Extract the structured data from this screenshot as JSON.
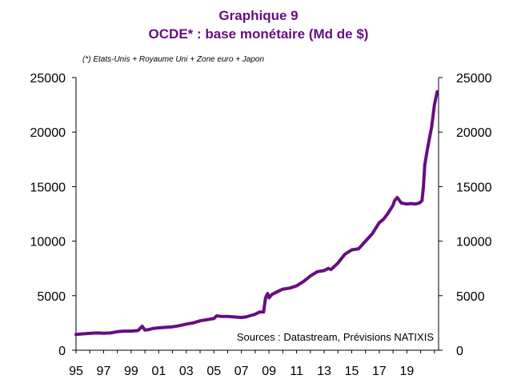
{
  "colors": {
    "series": "#660e7f",
    "title": "#660e7f",
    "axis": "#000000"
  },
  "chart_data": {
    "type": "line",
    "title": "Graphique 9",
    "subtitle": "OCDE* : base monétaire (Md de $)",
    "note": "(*) Etats-Unis + Royaume Uni + Zone euro + Japon",
    "source": "Sources : Datastream, Prévisions NATIXIS",
    "xlabel": "",
    "ylabel": "",
    "xlim": [
      1995,
      2021.3
    ],
    "ylim": [
      0,
      25000
    ],
    "grid": false,
    "x_ticks": [
      1995,
      1997,
      1999,
      2001,
      2003,
      2005,
      2007,
      2009,
      2011,
      2013,
      2015,
      2017,
      2019
    ],
    "x_tick_labels": [
      "95",
      "97",
      "99",
      "01",
      "03",
      "05",
      "07",
      "09",
      "11",
      "13",
      "15",
      "17",
      "19"
    ],
    "y_ticks": [
      0,
      5000,
      10000,
      15000,
      20000,
      25000
    ],
    "y_tick_labels": [
      "0",
      "5000",
      "10000",
      "15000",
      "20000",
      "25000"
    ],
    "series": [
      {
        "name": "OCDE base monétaire",
        "x": [
          1995.0,
          1995.5,
          1996.0,
          1996.5,
          1997.0,
          1997.5,
          1998.0,
          1998.5,
          1999.0,
          1999.5,
          1999.8,
          2000.0,
          2000.3,
          2000.6,
          2001.0,
          2001.5,
          2002.0,
          2002.5,
          2003.0,
          2003.5,
          2004.0,
          2004.5,
          2005.0,
          2005.2,
          2005.5,
          2006.0,
          2006.5,
          2007.0,
          2007.3,
          2007.6,
          2008.0,
          2008.3,
          2008.6,
          2008.75,
          2008.9,
          2009.0,
          2009.2,
          2009.5,
          2010.0,
          2010.5,
          2011.0,
          2011.5,
          2012.0,
          2012.5,
          2013.0,
          2013.3,
          2013.5,
          2014.0,
          2014.5,
          2015.0,
          2015.5,
          2016.0,
          2016.5,
          2017.0,
          2017.3,
          2017.6,
          2018.0,
          2018.1,
          2018.3,
          2018.6,
          2019.0,
          2019.3,
          2019.6,
          2019.9,
          2020.1,
          2020.2,
          2020.3,
          2020.5,
          2020.8,
          2021.0,
          2021.2
        ],
        "values": [
          1450,
          1500,
          1550,
          1580,
          1560,
          1580,
          1700,
          1750,
          1750,
          1800,
          2200,
          1850,
          1900,
          2000,
          2050,
          2100,
          2150,
          2250,
          2400,
          2500,
          2700,
          2800,
          2900,
          3150,
          3100,
          3100,
          3050,
          3000,
          3050,
          3150,
          3300,
          3500,
          3500,
          4800,
          5200,
          4800,
          5100,
          5300,
          5600,
          5700,
          5900,
          6300,
          6800,
          7200,
          7300,
          7500,
          7400,
          8000,
          8800,
          9200,
          9300,
          10000,
          10700,
          11700,
          12000,
          12500,
          13300,
          13700,
          14000,
          13500,
          13400,
          13450,
          13400,
          13500,
          13700,
          15000,
          17000,
          18500,
          20500,
          22500,
          23700
        ]
      }
    ]
  }
}
